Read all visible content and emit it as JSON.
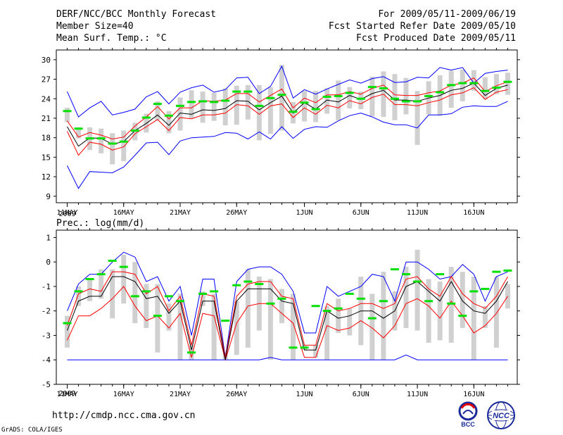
{
  "header": {
    "left": [
      "DERF/NCC/BCC Monthly Forecast",
      "Member Size=40",
      "Mean Surf. Temp.: °C"
    ],
    "right": [
      "For 2009/05/11-2009/06/19",
      "Fcst Started Refer Date 2009/05/10",
      "Fcst Produced Date 2009/05/11"
    ]
  },
  "footer": {
    "url": "http://cmdp.ncc.cma.gov.cn",
    "credit": "GrADS: COLA/IGES"
  },
  "logos": {
    "bcc_text": "BCC",
    "ncc_text": "NCC"
  },
  "colors": {
    "max": "#0000ff",
    "spread": "#ff0000",
    "mean": "#000000",
    "box": "#d0d0d0",
    "bar": "#00e000"
  },
  "chart_data": [
    {
      "type": "line",
      "title": "Mean Surf. Temp.: °C",
      "x_tick_labels": [
        "11MAY",
        "16MAY",
        "21MAY",
        "26MAY",
        "1JUN",
        "6JUN",
        "11JUN",
        "16JUN"
      ],
      "x_tick_days": [
        0,
        5,
        10,
        15,
        21,
        26,
        31,
        36
      ],
      "year_label": "2009",
      "ylim": [
        8,
        31.5
      ],
      "yticks": [
        9,
        12,
        15,
        18,
        21,
        24,
        27,
        30
      ],
      "series": [
        {
          "name": "max",
          "values": [
            25.1,
            21.2,
            22.6,
            23.6,
            21.5,
            21.9,
            22.4,
            24.3,
            25.1,
            23.2,
            25.0,
            25.7,
            26.1,
            25.0,
            25.4,
            27.2,
            27.3,
            24.8,
            25.9,
            29.0,
            24.1,
            25.4,
            24.7,
            25.5,
            26.2,
            26.9,
            26.4,
            27.1,
            27.4,
            26.5,
            26.6,
            27.3,
            27.2,
            28.8,
            28.4,
            28.8,
            26.4,
            27.9,
            28.2,
            28.4
          ]
        },
        {
          "name": "upper",
          "values": [
            20.6,
            18.1,
            18.8,
            18.4,
            17.8,
            18.1,
            19.8,
            21.2,
            22.8,
            20.9,
            22.6,
            22.6,
            23.7,
            23.6,
            23.8,
            24.8,
            24.8,
            23.5,
            24.5,
            25.5,
            22.6,
            24.1,
            23.4,
            24.6,
            24.6,
            25.1,
            24.7,
            25.6,
            26.1,
            24.6,
            24.5,
            24.5,
            24.9,
            25.2,
            26.1,
            26.4,
            27.2,
            25.1,
            26.0,
            26.6
          ]
        },
        {
          "name": "mean",
          "values": [
            19.7,
            16.7,
            18.0,
            17.9,
            17.0,
            17.4,
            19.1,
            20.2,
            21.5,
            19.9,
            21.8,
            21.6,
            22.3,
            22.2,
            22.5,
            23.7,
            23.6,
            22.3,
            23.4,
            24.4,
            21.8,
            23.4,
            22.4,
            23.8,
            23.5,
            24.5,
            23.9,
            24.8,
            25.3,
            23.8,
            23.8,
            23.6,
            24.1,
            24.5,
            25.3,
            25.6,
            26.4,
            24.5,
            25.6,
            26.1
          ]
        },
        {
          "name": "lower",
          "values": [
            19.0,
            15.3,
            17.3,
            17.0,
            16.1,
            16.6,
            18.6,
            19.7,
            20.8,
            19.1,
            21.1,
            20.9,
            21.5,
            21.5,
            21.8,
            23.1,
            22.9,
            21.6,
            22.9,
            23.2,
            21.1,
            22.6,
            21.6,
            23.0,
            22.6,
            23.7,
            23.2,
            24.2,
            24.7,
            23.1,
            23.1,
            22.9,
            23.4,
            23.8,
            24.6,
            24.9,
            25.7,
            23.9,
            25.0,
            25.4
          ]
        },
        {
          "name": "min",
          "values": [
            13.7,
            10.2,
            12.8,
            12.7,
            12.6,
            13.5,
            15.3,
            17.2,
            17.3,
            15.4,
            17.5,
            18.0,
            18.1,
            18.2,
            18.8,
            18.7,
            17.8,
            18.9,
            17.8,
            19.7,
            17.9,
            19.3,
            19.7,
            19.6,
            20.6,
            21.4,
            21.8,
            21.2,
            20.4,
            20.0,
            20.0,
            19.5,
            21.5,
            21.5,
            21.7,
            22.7,
            22.9,
            22.8,
            22.8,
            23.6
          ]
        },
        {
          "name": "box_top",
          "values": [
            22.6,
            19.6,
            19.6,
            19.4,
            18.7,
            19.1,
            20.3,
            21.7,
            23.6,
            22.1,
            24.2,
            25.3,
            25.1,
            24.9,
            25.6,
            26.0,
            26.1,
            26.1,
            25.8,
            29.2,
            23.5,
            25.2,
            25.2,
            25.6,
            26.8,
            25.8,
            25.1,
            27.4,
            28.2,
            27.8,
            27.2,
            25.2,
            26.7,
            27.6,
            28.3,
            28.5,
            28.4,
            27.3,
            27.8,
            28.0
          ]
        },
        {
          "name": "box_bottom",
          "values": [
            20.4,
            17.9,
            16.1,
            15.6,
            13.9,
            14.4,
            17.6,
            18.8,
            20.7,
            18.7,
            19.1,
            21.0,
            20.3,
            20.6,
            19.9,
            20.0,
            20.8,
            17.6,
            18.6,
            19.1,
            20.2,
            20.5,
            20.4,
            21.7,
            20.7,
            22.5,
            22.4,
            21.3,
            21.2,
            20.7,
            21.6,
            16.9,
            21.6,
            21.4,
            22.6,
            23.6,
            25.2,
            23.9,
            24.7,
            24.6
          ]
        },
        {
          "name": "marker",
          "values": [
            22.1,
            19.4,
            17.9,
            17.9,
            17.1,
            17.4,
            19.1,
            21.1,
            23.2,
            21.4,
            22.9,
            23.5,
            23.6,
            23.5,
            23.7,
            25.1,
            25.1,
            22.9,
            24.1,
            24.6,
            22.0,
            23.4,
            22.4,
            24.3,
            24.4,
            24.9,
            24.0,
            25.8,
            25.6,
            24.0,
            23.6,
            23.6,
            24.4,
            25.0,
            26.1,
            26.4,
            26.4,
            25.2,
            25.7,
            26.6
          ]
        }
      ]
    },
    {
      "type": "line",
      "title": "Prec.: log(mm/d)",
      "x_tick_labels": [
        "11MAY",
        "16MAY",
        "21MAY",
        "26MAY",
        "1JUN",
        "6JUN",
        "11JUN",
        "16JUN"
      ],
      "x_tick_days": [
        0,
        5,
        10,
        15,
        21,
        26,
        31,
        36
      ],
      "year_label": "2009",
      "ylim": [
        -5,
        1.3
      ],
      "yticks": [
        -5,
        -4,
        -3,
        -2,
        -1,
        0,
        1
      ],
      "series": [
        {
          "name": "max",
          "values": [
            -2.0,
            -0.9,
            -0.5,
            -0.5,
            0.0,
            0.4,
            0.2,
            -0.8,
            -0.6,
            -1.6,
            -1.0,
            -3.0,
            -0.7,
            -0.7,
            -3.9,
            -0.8,
            -0.3,
            -0.2,
            -0.2,
            -0.5,
            -1.2,
            -2.9,
            -2.9,
            -1.0,
            -1.4,
            -1.2,
            -1.0,
            -0.5,
            -0.6,
            -1.6,
            0.0,
            0.0,
            -0.3,
            -0.7,
            -0.6,
            -0.1,
            -0.5,
            -1.6,
            -0.6,
            -0.4
          ]
        },
        {
          "name": "upper",
          "values": [
            -2.6,
            -1.3,
            -1.1,
            -1.2,
            -0.4,
            -0.4,
            -0.5,
            -1.3,
            -1.0,
            -2.0,
            -1.4,
            -3.4,
            -1.3,
            -1.4,
            -3.9,
            -1.4,
            -0.9,
            -0.8,
            -0.8,
            -1.4,
            -1.5,
            -3.4,
            -3.4,
            -1.7,
            -2.0,
            -1.9,
            -1.7,
            -1.7,
            -1.9,
            -1.7,
            -0.7,
            -0.6,
            -1.1,
            -1.4,
            -0.6,
            -1.3,
            -1.7,
            -1.9,
            -1.4,
            -0.6
          ]
        },
        {
          "name": "mean",
          "values": [
            -2.8,
            -1.6,
            -1.4,
            -1.4,
            -0.6,
            -0.6,
            -0.8,
            -1.5,
            -1.4,
            -2.1,
            -1.6,
            -3.6,
            -1.6,
            -1.6,
            -4.0,
            -1.6,
            -1.1,
            -1.1,
            -1.1,
            -1.6,
            -1.7,
            -3.6,
            -3.6,
            -2.0,
            -2.3,
            -2.2,
            -2.0,
            -2.0,
            -2.3,
            -2.0,
            -1.0,
            -0.8,
            -1.2,
            -1.6,
            -0.8,
            -1.6,
            -2.0,
            -2.1,
            -1.6,
            -0.8
          ]
        },
        {
          "name": "lower",
          "values": [
            -3.2,
            -2.2,
            -2.2,
            -1.9,
            -1.5,
            -1.0,
            -1.8,
            -2.4,
            -2.2,
            -2.7,
            -2.1,
            -3.9,
            -2.1,
            -2.2,
            -4.0,
            -2.5,
            -1.8,
            -1.7,
            -1.7,
            -2.1,
            -2.5,
            -3.9,
            -3.9,
            -2.6,
            -2.8,
            -2.7,
            -2.4,
            -2.7,
            -3.1,
            -2.6,
            -1.7,
            -1.5,
            -1.8,
            -2.3,
            -1.6,
            -2.2,
            -2.9,
            -2.6,
            -2.1,
            -1.4
          ]
        },
        {
          "name": "min",
          "values": [
            -4,
            -4,
            -4,
            -4,
            -4,
            -4,
            -4,
            -4,
            -4,
            -4,
            -4,
            -4,
            -4,
            -4,
            -4,
            -4,
            -4,
            -4,
            -3.9,
            -4,
            -4,
            -4,
            -4,
            -4,
            -4,
            -4,
            -4,
            -4,
            -4,
            -4,
            -3.8,
            -4,
            -4,
            -4,
            -4,
            -4,
            -4,
            -4,
            -4,
            -4
          ]
        },
        {
          "name": "box_top",
          "values": [
            -2.2,
            -1.0,
            -0.7,
            -0.3,
            -0.3,
            0.3,
            0.0,
            -0.9,
            -0.9,
            -1.7,
            -1.3,
            -3.4,
            -1.2,
            -1.3,
            -3.7,
            -1.6,
            -0.3,
            -0.6,
            -0.7,
            -1.1,
            -1.3,
            -3.4,
            -3.4,
            -1.8,
            -1.5,
            -1.9,
            -0.6,
            -1.3,
            -0.4,
            -1.2,
            -0.2,
            0.5,
            -0.7,
            -0.8,
            -0.2,
            -0.4,
            -0.6,
            -1.8,
            -0.6,
            -0.9
          ]
        },
        {
          "name": "box_bottom",
          "values": [
            -3.5,
            -1.8,
            -1.6,
            -1.5,
            -2.3,
            -1.7,
            -2.5,
            -2.7,
            -3.7,
            -2.8,
            -4.0,
            -4.0,
            -1.8,
            -4.0,
            -4.0,
            -3.8,
            -3.5,
            -2.8,
            -4.0,
            -2.5,
            -4.0,
            -3.6,
            -3.9,
            -4.0,
            -2.9,
            -3.0,
            -3.4,
            -4.0,
            -4.0,
            -2.8,
            -2.7,
            -2.8,
            -3.3,
            -3.2,
            -3.3,
            -2.7,
            -4.0,
            -2.7,
            -3.5,
            -1.9
          ]
        },
        {
          "name": "marker",
          "values": [
            -2.5,
            -1.2,
            -0.7,
            -0.5,
            0.05,
            -0.2,
            -1.4,
            -1.2,
            -2.2,
            -1.4,
            -1.6,
            -3.7,
            -1.3,
            -1.2,
            -2.4,
            -0.95,
            -0.8,
            -0.9,
            -1.7,
            -1.5,
            -3.5,
            -3.5,
            -1.8,
            -2.0,
            -1.9,
            -1.3,
            -1.5,
            -2.3,
            -1.6,
            -0.3,
            -0.5,
            -0.8,
            -1.6,
            -0.5,
            -1.7,
            -2.2,
            -1.2,
            -1.1,
            -0.4,
            -0.35
          ]
        }
      ]
    }
  ]
}
